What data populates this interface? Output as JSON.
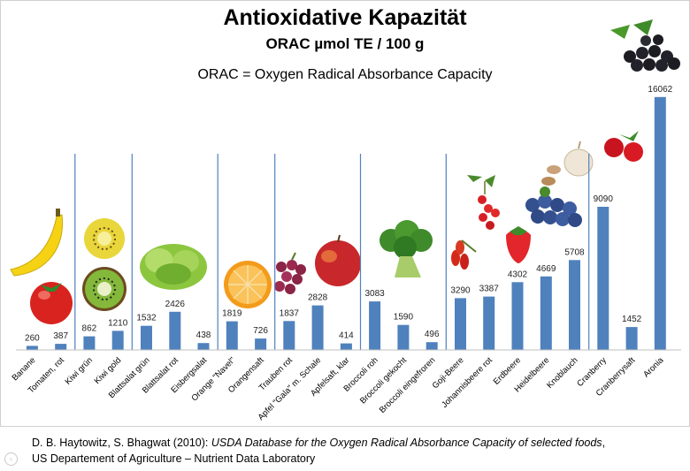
{
  "chart_data": {
    "type": "bar",
    "title": "Antioxidative Kapazität",
    "subtitle": "ORAC  µmol TE / 100 g",
    "note": "ORAC = Oxygen Radical Absorbance Capacity",
    "categories": [
      "Banane",
      "Tomaten, rot",
      "Kiwi grün",
      "Kiwi gold",
      "Blattsalat grün",
      "Blattsalat rot",
      "Eisbergsalat",
      "Orange \"Navel\"",
      "Orangensaft",
      "Trauben rot",
      "Apfel \"Gala\" m. Schale",
      "Apfelsaft, klar",
      "Broccoli roh",
      "Broccoli gekocht",
      "Broccoli eingefroren",
      "Goji-Beere",
      "Johannisbeere rot",
      "Erdbeere",
      "Heidelbeere",
      "Knoblauch",
      "Cranberry",
      "Cranberrysaft",
      "Aronia"
    ],
    "values": [
      260,
      387,
      862,
      1210,
      1532,
      2426,
      438,
      1819,
      726,
      1837,
      2828,
      414,
      3083,
      1590,
      496,
      3290,
      3387,
      4302,
      4669,
      5708,
      9090,
      1452,
      16062
    ],
    "ylim": [
      0,
      16500
    ],
    "xlabel": "",
    "ylabel": "",
    "grid": false,
    "bar_color": "#4f81bd",
    "group_separator_color": "#4f81bd",
    "group_starts": [
      2,
      4,
      7,
      9,
      12,
      15,
      20
    ]
  },
  "source": {
    "authors": "D. B. Haytowitz, S. Bhagwat (2010): ",
    "work": "USDA Database for the Oxygen Radical Absorbance Capacity of selected foods",
    "work_end": ",",
    "line2": "US Departement of Agriculture – Nutrient Data Laboratory"
  }
}
